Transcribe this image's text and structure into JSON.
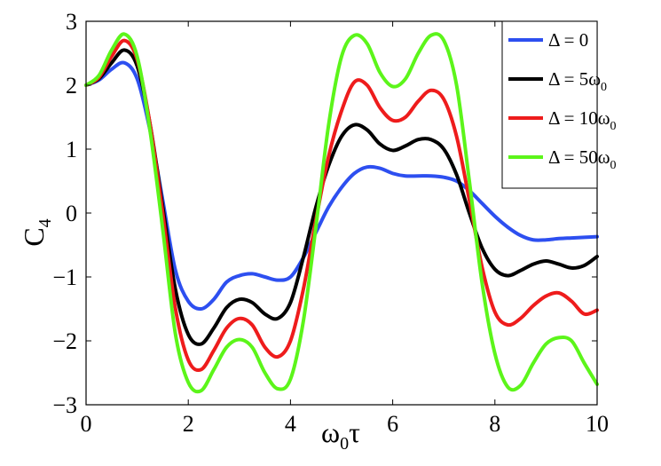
{
  "chart_data": {
    "type": "line",
    "xlabel": "ω",
    "xlabel_sub": "0",
    "xlabel_tail": "τ",
    "ylabel": "C",
    "ylabel_sub": "4",
    "xlim": [
      0,
      10
    ],
    "ylim": [
      -3,
      3
    ],
    "xticks": [
      "0",
      "2",
      "4",
      "6",
      "8",
      "10"
    ],
    "yticks": [
      "−3",
      "−2",
      "−1",
      "0",
      "1",
      "2",
      "3"
    ],
    "grid": false,
    "legend_position": "top-right",
    "x": [
      0,
      0.25,
      0.5,
      0.75,
      1,
      1.25,
      1.5,
      1.75,
      2,
      2.25,
      2.5,
      2.75,
      3,
      3.25,
      3.5,
      3.75,
      4,
      4.25,
      4.5,
      4.75,
      5,
      5.25,
      5.5,
      5.75,
      6,
      6.25,
      6.5,
      6.75,
      7,
      7.25,
      7.5,
      7.75,
      8,
      8.25,
      8.5,
      8.75,
      9,
      9.25,
      9.5,
      9.75,
      10
    ],
    "series": [
      {
        "name": "Δ = 0",
        "color": "#2d4ff0",
        "values": [
          2.0,
          2.08,
          2.25,
          2.35,
          2.1,
          1.3,
          0.2,
          -0.9,
          -1.38,
          -1.5,
          -1.35,
          -1.08,
          -0.98,
          -0.95,
          -1.0,
          -1.05,
          -1.0,
          -0.7,
          -0.3,
          0.1,
          0.4,
          0.62,
          0.72,
          0.7,
          0.62,
          0.58,
          0.58,
          0.58,
          0.56,
          0.5,
          0.35,
          0.15,
          -0.05,
          -0.22,
          -0.35,
          -0.42,
          -0.42,
          -0.4,
          -0.39,
          -0.38,
          -0.37
        ]
      },
      {
        "name": "Δ = 5ω",
        "name_sub": "0",
        "color": "#000000",
        "values": [
          2.0,
          2.1,
          2.35,
          2.55,
          2.3,
          1.4,
          0.1,
          -1.2,
          -1.9,
          -2.05,
          -1.8,
          -1.48,
          -1.35,
          -1.4,
          -1.58,
          -1.65,
          -1.4,
          -0.7,
          0.1,
          0.75,
          1.2,
          1.38,
          1.3,
          1.08,
          0.98,
          1.05,
          1.15,
          1.15,
          1.0,
          0.6,
          0.0,
          -0.55,
          -0.88,
          -0.98,
          -0.9,
          -0.8,
          -0.75,
          -0.8,
          -0.86,
          -0.82,
          -0.68
        ]
      },
      {
        "name": "Δ = 10ω",
        "name_sub": "0",
        "color": "#ee1c1c",
        "values": [
          2.0,
          2.12,
          2.45,
          2.7,
          2.4,
          1.4,
          0.0,
          -1.5,
          -2.3,
          -2.45,
          -2.15,
          -1.8,
          -1.65,
          -1.75,
          -2.1,
          -2.25,
          -2.0,
          -1.2,
          -0.1,
          0.9,
          1.6,
          2.05,
          2.0,
          1.65,
          1.45,
          1.5,
          1.75,
          1.92,
          1.78,
          1.2,
          0.2,
          -0.85,
          -1.55,
          -1.75,
          -1.65,
          -1.45,
          -1.3,
          -1.25,
          -1.38,
          -1.58,
          -1.52
        ]
      },
      {
        "name": "Δ = 50ω",
        "name_sub": "0",
        "color": "#5cf51a",
        "values": [
          2.0,
          2.15,
          2.55,
          2.8,
          2.45,
          1.3,
          -0.25,
          -1.9,
          -2.65,
          -2.78,
          -2.45,
          -2.1,
          -1.98,
          -2.1,
          -2.5,
          -2.75,
          -2.6,
          -1.7,
          -0.2,
          1.4,
          2.45,
          2.78,
          2.65,
          2.2,
          1.98,
          2.1,
          2.5,
          2.78,
          2.7,
          2.0,
          0.5,
          -1.1,
          -2.2,
          -2.72,
          -2.7,
          -2.35,
          -2.05,
          -1.95,
          -2.0,
          -2.35,
          -2.68
        ]
      }
    ]
  }
}
